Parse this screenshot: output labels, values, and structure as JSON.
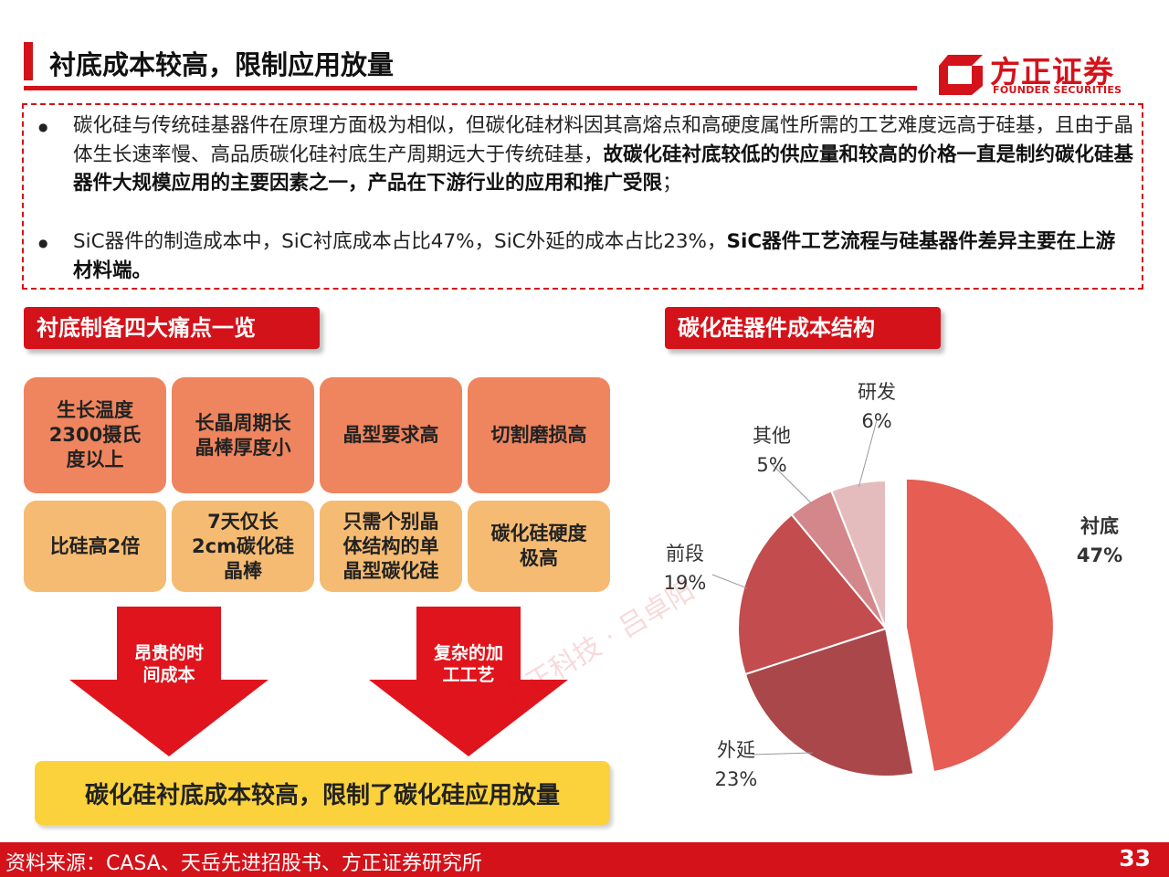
{
  "header": {
    "title": "衬底成本较高，限制应用放量",
    "logo_cn": "方正证券",
    "logo_en": "FOUNDER SECURITIES"
  },
  "intro": {
    "bullet1_plain": "碳化硅与传统硅基器件在原理方面极为相似，但碳化硅材料因其高熔点和高硬度属性所需的工艺难度远高于硅基，且由于晶体生长速率慢、高品质碳化硅衬底生产周期远大于传统硅基，",
    "bullet1_bold": "故碳化硅衬底较低的供应量和较高的价格一直是制约碳化硅基器件大规模应用的主要因素之一，产品在下游行业的应用和推广受限",
    "bullet1_tail": "；",
    "bullet2_plain": "SiC器件的制造成本中，SiC衬底成本占比47%，SiC外延的成本占比23%，",
    "bullet2_bold": "SiC器件工艺流程与硅基器件差异主要在上游材料端。"
  },
  "left_section": {
    "label": "衬底制备四大痛点一览",
    "top_cards": [
      "生长温度\n2300摄氏\n度以上",
      "长晶周期长\n晶棒厚度小",
      "晶型要求高",
      "切割磨损高"
    ],
    "bottom_cards": [
      "比硅高2倍",
      "7天仅长\n2cm碳化硅\n晶棒",
      "只需个别晶\n体结构的单\n晶型碳化硅",
      "碳化硅硬度\n极高"
    ],
    "arrow1": "昂贵的时\n间成本",
    "arrow2": "复杂的加\n工工艺",
    "conclusion": "碳化硅衬底成本较高，限制了碳化硅应用放量"
  },
  "right_section": {
    "label": "碳化硅器件成本结构"
  },
  "chart_data": {
    "type": "pie",
    "categories": [
      "衬底",
      "外延",
      "前段",
      "其他",
      "研发"
    ],
    "values": [
      47,
      23,
      19,
      5,
      6
    ],
    "value_labels": [
      "47%",
      "23%",
      "19%",
      "5%",
      "6%"
    ],
    "colors": [
      "#e55d53",
      "#a9474a",
      "#c24c4e",
      "#d4878a",
      "#e5bcbd"
    ],
    "exploded": "衬底",
    "bold_label": "衬底"
  },
  "watermark": "方正科技 · 吕卓阳",
  "footer": {
    "source": "资料来源：CASA、天岳先进招股书、方正证券研究所",
    "page": "33"
  }
}
